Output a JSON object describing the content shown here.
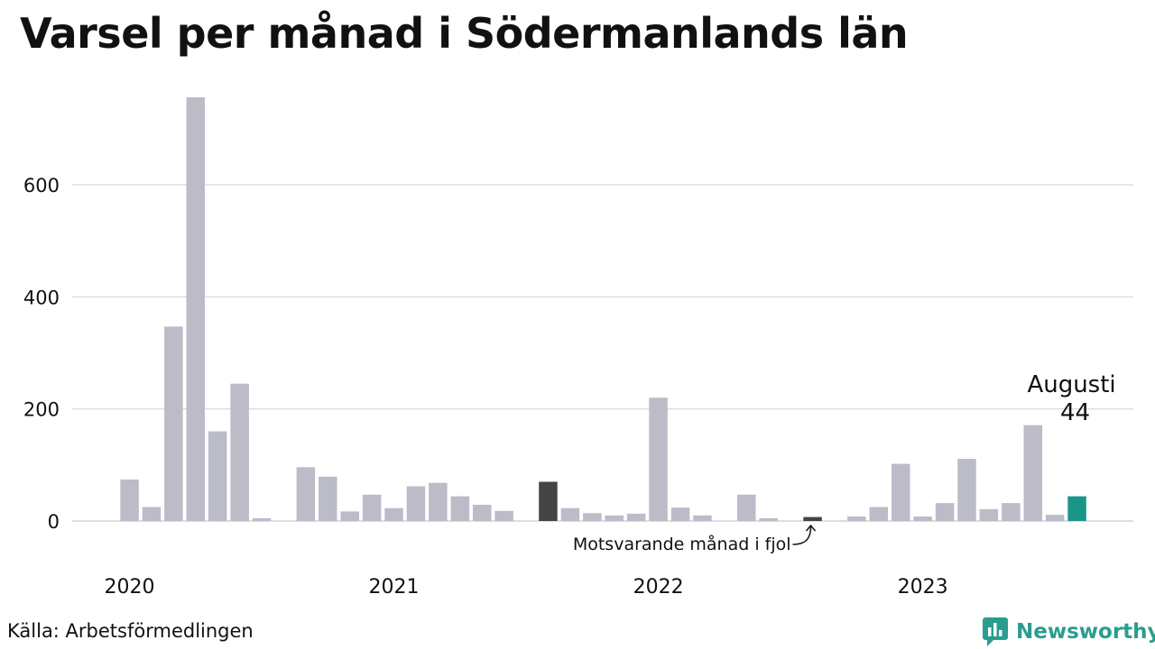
{
  "page": {
    "title": "Varsel per månad i Södermanlands län",
    "source": "Källa: Arbetsförmedlingen",
    "brand": "Newsworthy"
  },
  "colors": {
    "bar": "#bcbbc8",
    "highlight_last_year": "#444444",
    "highlight_current": "#1a9688",
    "grid": "#dddde2",
    "text": "#111111",
    "brand": "#2a9d8f"
  },
  "icons": {
    "brand_logo": "bar-chart-bubble-icon",
    "annotation_arrow": "curved-arrow-icon"
  },
  "chart_data": {
    "type": "bar",
    "title": "Varsel per månad i Södermanlands län",
    "xlabel": "",
    "ylabel": "",
    "ylim": [
      0,
      760
    ],
    "yticks": [
      0,
      200,
      400,
      600
    ],
    "grid": true,
    "legend": "none",
    "x_year_labels": [
      "2020",
      "2021",
      "2022",
      "2023"
    ],
    "x": [
      "2020-01",
      "2020-02",
      "2020-03",
      "2020-04",
      "2020-05",
      "2020-06",
      "2020-07",
      "2020-08",
      "2020-09",
      "2020-10",
      "2020-11",
      "2020-12",
      "2021-01",
      "2021-02",
      "2021-03",
      "2021-04",
      "2021-05",
      "2021-06",
      "2021-07",
      "2021-08",
      "2021-09",
      "2021-10",
      "2021-11",
      "2021-12",
      "2022-01",
      "2022-02",
      "2022-03",
      "2022-04",
      "2022-05",
      "2022-06",
      "2022-07",
      "2022-08",
      "2022-09",
      "2022-10",
      "2022-11",
      "2022-12",
      "2023-01",
      "2023-02",
      "2023-03",
      "2023-04",
      "2023-05",
      "2023-06",
      "2023-07",
      "2023-08"
    ],
    "values": [
      74,
      25,
      347,
      756,
      160,
      245,
      5,
      0,
      96,
      79,
      17,
      47,
      23,
      62,
      68,
      44,
      29,
      18,
      0,
      70,
      23,
      14,
      10,
      13,
      220,
      24,
      10,
      0,
      47,
      5,
      0,
      7,
      0,
      8,
      25,
      102,
      8,
      32,
      111,
      21,
      32,
      171,
      11,
      44
    ],
    "highlights": [
      {
        "x": "2022-08",
        "role": "last_year"
      },
      {
        "x": "2023-08",
        "role": "current"
      },
      {
        "x": "2021-08",
        "role": "last_year_dark"
      }
    ],
    "annotations": {
      "current_label": "Augusti",
      "current_value": "44",
      "last_year_label": "Motsvarande månad i fjol"
    }
  }
}
